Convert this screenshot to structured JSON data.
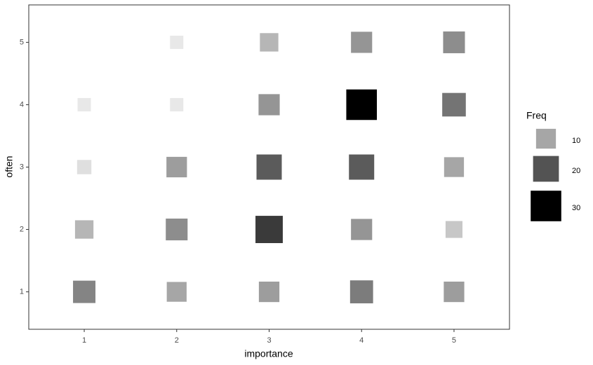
{
  "chart_data": {
    "type": "scatter",
    "x_label": "importance",
    "y_label": "often",
    "x": [
      2,
      3,
      4,
      5,
      1,
      2,
      3,
      4,
      5,
      1,
      2,
      3,
      4,
      5,
      1,
      2,
      3,
      4,
      5,
      1,
      2,
      3,
      4,
      5
    ],
    "y": [
      5,
      5,
      5,
      5,
      4,
      4,
      4,
      4,
      4,
      3,
      3,
      3,
      3,
      3,
      2,
      2,
      2,
      2,
      2,
      1,
      1,
      1,
      1,
      1
    ],
    "size": [
      2,
      8,
      12,
      13,
      2,
      2,
      12,
      30,
      16,
      3,
      11,
      19,
      19,
      10,
      8,
      13,
      23,
      12,
      6,
      14,
      10,
      11,
      15,
      11
    ],
    "xlim": [
      0.4,
      5.6
    ],
    "ylim": [
      0.4,
      5.6
    ],
    "xticks": [
      1,
      2,
      3,
      4,
      5
    ],
    "yticks": [
      1,
      2,
      3,
      4,
      5
    ],
    "legend": {
      "title": "Freq",
      "values": [
        10,
        20,
        30
      ]
    },
    "freq_lim": [
      1,
      30
    ],
    "color_range": [
      "#f0f0f0",
      "#000000"
    ]
  }
}
